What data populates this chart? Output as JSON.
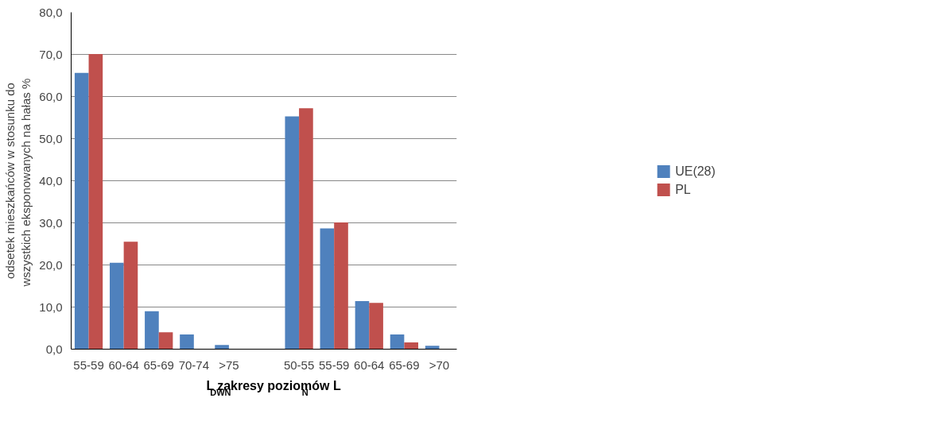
{
  "chart_data": {
    "type": "bar",
    "xlabel": "L$_{DWN}$     zakresy poziomów     L$_{N}$",
    "ylabel": "odsetek mieszkańców w stosunku do\nwszystkich eksponowanych na hałas  %",
    "categories": [
      "55-59",
      "60-64",
      "65-69",
      "70-74",
      ">75",
      null,
      "50-55",
      "55-59",
      "60-64",
      "65-69",
      ">70"
    ],
    "series": [
      {
        "name": "UE(28)",
        "color": "#4f81bd",
        "values": [
          65.6,
          20.5,
          9.0,
          3.5,
          1.0,
          null,
          55.3,
          28.7,
          11.4,
          3.5,
          0.8
        ]
      },
      {
        "name": "PL",
        "color": "#c0504d",
        "values": [
          70.1,
          25.5,
          4.0,
          0,
          0,
          null,
          57.2,
          30.1,
          11.0,
          1.6,
          0
        ]
      }
    ],
    "ylim": [
      0,
      80
    ],
    "yticks": [
      {
        "value": 0,
        "label": "0,0"
      },
      {
        "value": 10,
        "label": "10,0"
      },
      {
        "value": 20,
        "label": "20,0"
      },
      {
        "value": 30,
        "label": "30,0"
      },
      {
        "value": 40,
        "label": "40,0"
      },
      {
        "value": 50,
        "label": "50,0"
      },
      {
        "value": 60,
        "label": "60,0"
      },
      {
        "value": 70,
        "label": "70,0"
      },
      {
        "value": 80,
        "label": "80,0"
      }
    ],
    "grid": "y",
    "legend": "right"
  }
}
